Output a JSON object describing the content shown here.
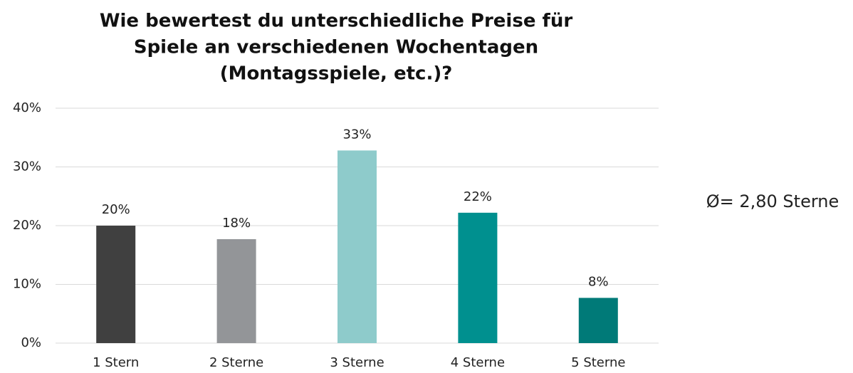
{
  "chart_data": {
    "type": "bar",
    "title": [
      "Wie bewertest du unterschiedliche Preise für",
      "Spiele an verschiedenen Wochentagen",
      "(Montagsspiele, etc.)?"
    ],
    "annotation": "Ø= 2,80 Sterne",
    "categories": [
      "1 Stern",
      "2 Sterne",
      "3 Sterne",
      "4 Sterne",
      "5 Sterne"
    ],
    "values": [
      20,
      17.7,
      32.8,
      22.2,
      7.7
    ],
    "value_labels": [
      "20%",
      "18%",
      "33%",
      "22%",
      "8%"
    ],
    "colors": [
      "#404040",
      "#939598",
      "#8ecbcb",
      "#00908f",
      "#007a78"
    ],
    "ylim": [
      0,
      40
    ],
    "yticks": [
      {
        "value": 0,
        "label": "0%"
      },
      {
        "value": 10,
        "label": "10%"
      },
      {
        "value": 20,
        "label": "20%"
      },
      {
        "value": 30,
        "label": "30%"
      },
      {
        "value": 40,
        "label": "40%"
      }
    ],
    "grid": true
  }
}
